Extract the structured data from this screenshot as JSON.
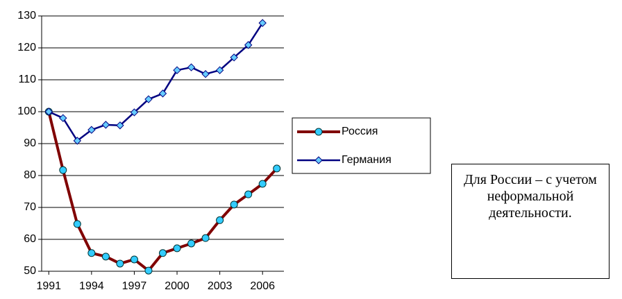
{
  "chart_data": {
    "type": "line",
    "x": [
      1991,
      1992,
      1993,
      1994,
      1995,
      1996,
      1997,
      1998,
      1999,
      2000,
      2001,
      2002,
      2003,
      2004,
      2005,
      2006,
      2007
    ],
    "series": [
      {
        "name": "Россия",
        "color": "#800000",
        "values": [
          100,
          81.7,
          64.8,
          55.7,
          54.6,
          52.4,
          53.7,
          50.2,
          55.7,
          57.2,
          58.7,
          60.4,
          66,
          70.9,
          74.1,
          77.4,
          82.2
        ]
      },
      {
        "name": "Германия",
        "color": "#000080",
        "values": [
          100,
          98,
          90.9,
          94.3,
          95.9,
          95.7,
          99.8,
          103.9,
          105.7,
          113,
          113.9,
          111.8,
          113,
          117,
          120.9,
          127.8,
          null
        ]
      }
    ],
    "xlim": [
      1990.5,
      2007.5
    ],
    "xticks": [
      1991,
      1994,
      1997,
      2000,
      2003,
      2006
    ],
    "ylim": [
      50,
      130
    ],
    "yticks": [
      50,
      60,
      70,
      80,
      90,
      100,
      110,
      120,
      130
    ],
    "grid": true,
    "legend": "right",
    "annotation": "Для России – с учетом неформальной деятельности."
  }
}
